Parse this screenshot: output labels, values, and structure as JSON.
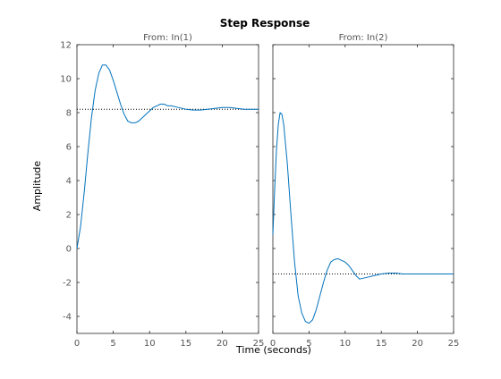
{
  "chart_data": {
    "type": "line",
    "title": "Step Response",
    "xlabel": "Time (seconds)",
    "ylabel": "Amplitude",
    "xlim": [
      0,
      25
    ],
    "ylim": [
      -5,
      12
    ],
    "xticks": [
      0,
      5,
      10,
      15,
      20,
      25
    ],
    "yticks": [
      -4,
      -2,
      0,
      2,
      4,
      6,
      8,
      10,
      12
    ],
    "grid": false,
    "line_color": "#0072BD",
    "reference_line_color": "#000000",
    "panels": [
      {
        "subtitle": "From: In(1)",
        "steady_state": 8.2,
        "x": [
          0,
          0.5,
          1.0,
          1.5,
          2.0,
          2.5,
          3.0,
          3.5,
          4.0,
          4.5,
          5.0,
          5.5,
          6.0,
          6.5,
          7.0,
          7.5,
          8.0,
          8.5,
          9.0,
          9.5,
          10.0,
          10.5,
          11.0,
          11.5,
          12.0,
          12.5,
          13.0,
          14.0,
          15.0,
          16.0,
          17.0,
          18.0,
          19.0,
          20.0,
          21.0,
          22.0,
          23.0,
          24.0,
          25.0
        ],
        "y": [
          0.0,
          1.3,
          3.3,
          5.6,
          7.7,
          9.3,
          10.3,
          10.8,
          10.8,
          10.5,
          9.9,
          9.2,
          8.5,
          7.9,
          7.5,
          7.4,
          7.4,
          7.5,
          7.7,
          7.9,
          8.1,
          8.3,
          8.4,
          8.5,
          8.5,
          8.4,
          8.4,
          8.3,
          8.2,
          8.15,
          8.15,
          8.2,
          8.25,
          8.3,
          8.3,
          8.25,
          8.2,
          8.2,
          8.2
        ]
      },
      {
        "subtitle": "From: In(2)",
        "steady_state": -1.5,
        "x": [
          0,
          0.25,
          0.5,
          0.75,
          1.0,
          1.25,
          1.5,
          2.0,
          2.5,
          3.0,
          3.5,
          4.0,
          4.5,
          5.0,
          5.5,
          6.0,
          6.5,
          7.0,
          7.5,
          8.0,
          8.5,
          9.0,
          9.5,
          10.0,
          10.5,
          11.0,
          11.5,
          12.0,
          13.0,
          14.0,
          15.0,
          16.0,
          17.0,
          18.0,
          19.0,
          20.0,
          21.0,
          22.0,
          23.0,
          24.0,
          25.0
        ],
        "y": [
          0.8,
          3.5,
          5.8,
          7.3,
          8.0,
          7.9,
          7.3,
          5.0,
          2.0,
          -0.8,
          -2.8,
          -3.8,
          -4.3,
          -4.4,
          -4.2,
          -3.6,
          -2.8,
          -2.0,
          -1.3,
          -0.8,
          -0.65,
          -0.6,
          -0.7,
          -0.8,
          -1.0,
          -1.3,
          -1.6,
          -1.8,
          -1.7,
          -1.6,
          -1.5,
          -1.45,
          -1.45,
          -1.5,
          -1.5,
          -1.5,
          -1.5,
          -1.5,
          -1.5,
          -1.5,
          -1.5
        ]
      }
    ]
  }
}
